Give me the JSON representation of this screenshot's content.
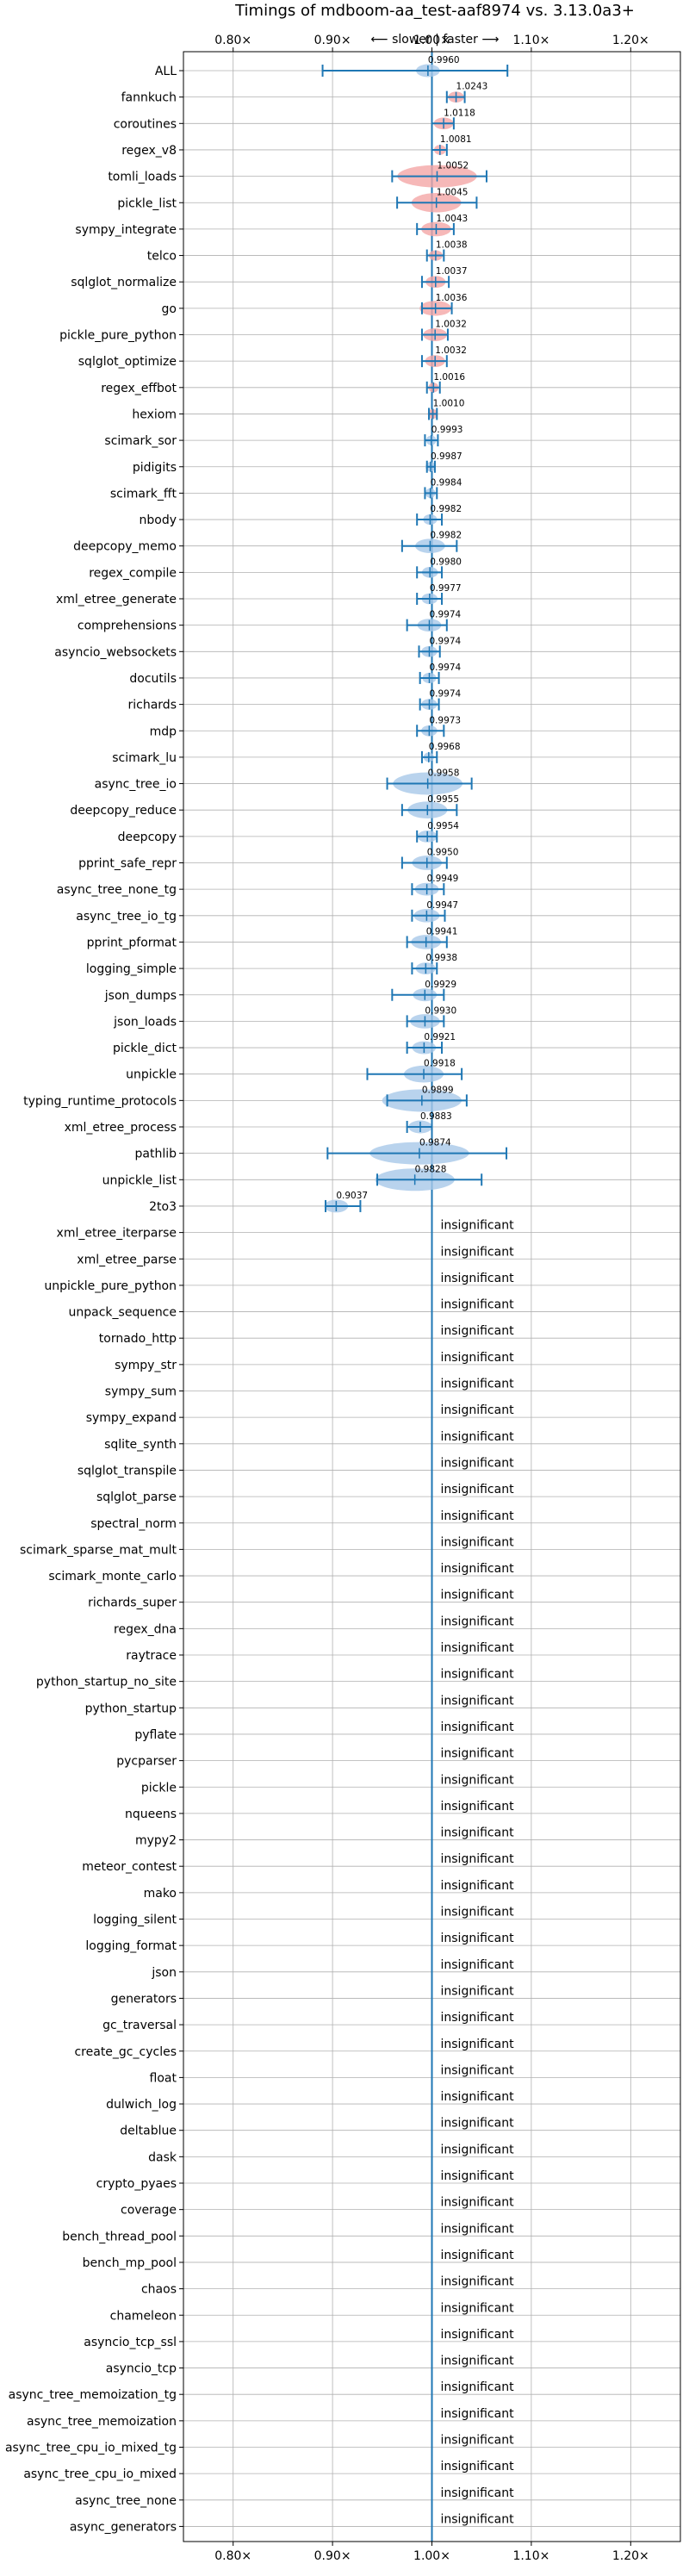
{
  "chart_data": {
    "type": "violin",
    "title": "Timings of mdboom-aa_test-aaf8974 vs. 3.13.0a3+",
    "subtitle": "⟵ slower | faster ⟶",
    "xlim": [
      0.75,
      1.25
    ],
    "x_ticks": [
      0.8,
      0.9,
      1.0,
      1.1,
      1.2
    ],
    "x_tick_labels": [
      "0.80×",
      "0.90×",
      "1.00×",
      "1.10×",
      "1.20×"
    ],
    "grid": true,
    "reference_line": 1.0,
    "insignificant_label": "insignificant",
    "colors": {
      "faster": "#f4a6a6",
      "slower": "#a8c8e8",
      "line": "#1f77b4",
      "grid": "#b0b0b0"
    },
    "benchmarks": [
      {
        "name": "ALL",
        "value": 0.996,
        "label": "0.9960",
        "lo": 0.89,
        "hi": 1.076,
        "spread": 0.012,
        "significant": true
      },
      {
        "name": "fannkuch",
        "value": 1.0243,
        "label": "1.0243",
        "lo": 1.015,
        "hi": 1.033,
        "spread": 0.008,
        "significant": true
      },
      {
        "name": "coroutines",
        "value": 1.0118,
        "label": "1.0118",
        "lo": 1.0,
        "hi": 1.022,
        "spread": 0.01,
        "significant": true
      },
      {
        "name": "regex_v8",
        "value": 1.0081,
        "label": "1.0081",
        "lo": 1.0,
        "hi": 1.015,
        "spread": 0.006,
        "significant": true
      },
      {
        "name": "tomli_loads",
        "value": 1.0052,
        "label": "1.0052",
        "lo": 0.96,
        "hi": 1.055,
        "spread": 0.04,
        "significant": true
      },
      {
        "name": "pickle_list",
        "value": 1.0045,
        "label": "1.0045",
        "lo": 0.965,
        "hi": 1.045,
        "spread": 0.025,
        "significant": true
      },
      {
        "name": "sympy_integrate",
        "value": 1.0043,
        "label": "1.0043",
        "lo": 0.985,
        "hi": 1.022,
        "spread": 0.015,
        "significant": true
      },
      {
        "name": "telco",
        "value": 1.0038,
        "label": "1.0038",
        "lo": 0.995,
        "hi": 1.012,
        "spread": 0.007,
        "significant": true
      },
      {
        "name": "sqlglot_normalize",
        "value": 1.0037,
        "label": "1.0037",
        "lo": 0.99,
        "hi": 1.017,
        "spread": 0.01,
        "significant": true
      },
      {
        "name": "go",
        "value": 1.0036,
        "label": "1.0036",
        "lo": 0.99,
        "hi": 1.02,
        "spread": 0.016,
        "significant": true
      },
      {
        "name": "pickle_pure_python",
        "value": 1.0032,
        "label": "1.0032",
        "lo": 0.99,
        "hi": 1.016,
        "spread": 0.012,
        "significant": true
      },
      {
        "name": "sqlglot_optimize",
        "value": 1.0032,
        "label": "1.0032",
        "lo": 0.99,
        "hi": 1.015,
        "spread": 0.01,
        "significant": true
      },
      {
        "name": "regex_effbot",
        "value": 1.0016,
        "label": "1.0016",
        "lo": 0.995,
        "hi": 1.008,
        "spread": 0.005,
        "significant": true
      },
      {
        "name": "hexiom",
        "value": 1.001,
        "label": "1.0010",
        "lo": 0.997,
        "hi": 1.005,
        "spread": 0.005,
        "significant": true
      },
      {
        "name": "scimark_sor",
        "value": 0.9993,
        "label": "0.9993",
        "lo": 0.993,
        "hi": 1.006,
        "spread": 0.005,
        "significant": true
      },
      {
        "name": "pidigits",
        "value": 0.9987,
        "label": "0.9987",
        "lo": 0.995,
        "hi": 1.003,
        "spread": 0.004,
        "significant": true
      },
      {
        "name": "scimark_fft",
        "value": 0.9984,
        "label": "0.9984",
        "lo": 0.993,
        "hi": 1.005,
        "spread": 0.005,
        "significant": true
      },
      {
        "name": "nbody",
        "value": 0.9982,
        "label": "0.9982",
        "lo": 0.985,
        "hi": 1.01,
        "spread": 0.007,
        "significant": true
      },
      {
        "name": "deepcopy_memo",
        "value": 0.9982,
        "label": "0.9982",
        "lo": 0.97,
        "hi": 1.025,
        "spread": 0.015,
        "significant": true
      },
      {
        "name": "regex_compile",
        "value": 0.998,
        "label": "0.9980",
        "lo": 0.985,
        "hi": 1.01,
        "spread": 0.008,
        "significant": true
      },
      {
        "name": "xml_etree_generate",
        "value": 0.9977,
        "label": "0.9977",
        "lo": 0.985,
        "hi": 1.01,
        "spread": 0.008,
        "significant": true
      },
      {
        "name": "comprehensions",
        "value": 0.9974,
        "label": "0.9974",
        "lo": 0.975,
        "hi": 1.015,
        "spread": 0.012,
        "significant": true
      },
      {
        "name": "asyncio_websockets",
        "value": 0.9974,
        "label": "0.9974",
        "lo": 0.987,
        "hi": 1.008,
        "spread": 0.008,
        "significant": true
      },
      {
        "name": "docutils",
        "value": 0.9974,
        "label": "0.9974",
        "lo": 0.988,
        "hi": 1.007,
        "spread": 0.007,
        "significant": true
      },
      {
        "name": "richards",
        "value": 0.9974,
        "label": "0.9974",
        "lo": 0.988,
        "hi": 1.007,
        "spread": 0.008,
        "significant": true
      },
      {
        "name": "mdp",
        "value": 0.9973,
        "label": "0.9973",
        "lo": 0.985,
        "hi": 1.012,
        "spread": 0.008,
        "significant": true
      },
      {
        "name": "scimark_lu",
        "value": 0.9968,
        "label": "0.9968",
        "lo": 0.99,
        "hi": 1.005,
        "spread": 0.005,
        "significant": true
      },
      {
        "name": "async_tree_io",
        "value": 0.9958,
        "label": "0.9958",
        "lo": 0.955,
        "hi": 1.04,
        "spread": 0.035,
        "significant": true
      },
      {
        "name": "deepcopy_reduce",
        "value": 0.9955,
        "label": "0.9955",
        "lo": 0.97,
        "hi": 1.025,
        "spread": 0.02,
        "significant": true
      },
      {
        "name": "deepcopy",
        "value": 0.9954,
        "label": "0.9954",
        "lo": 0.985,
        "hi": 1.005,
        "spread": 0.01,
        "significant": true
      },
      {
        "name": "pprint_safe_repr",
        "value": 0.995,
        "label": "0.9950",
        "lo": 0.97,
        "hi": 1.015,
        "spread": 0.015,
        "significant": true
      },
      {
        "name": "async_tree_none_tg",
        "value": 0.9949,
        "label": "0.9949",
        "lo": 0.98,
        "hi": 1.012,
        "spread": 0.012,
        "significant": true
      },
      {
        "name": "async_tree_io_tg",
        "value": 0.9947,
        "label": "0.9947",
        "lo": 0.98,
        "hi": 1.013,
        "spread": 0.013,
        "significant": true
      },
      {
        "name": "pprint_pformat",
        "value": 0.9941,
        "label": "0.9941",
        "lo": 0.975,
        "hi": 1.015,
        "spread": 0.015,
        "significant": true
      },
      {
        "name": "logging_simple",
        "value": 0.9938,
        "label": "0.9938",
        "lo": 0.98,
        "hi": 1.005,
        "spread": 0.01,
        "significant": true
      },
      {
        "name": "json_dumps",
        "value": 0.9929,
        "label": "0.9929",
        "lo": 0.96,
        "hi": 1.012,
        "spread": 0.012,
        "significant": true
      },
      {
        "name": "json_loads",
        "value": 0.993,
        "label": "0.9930",
        "lo": 0.975,
        "hi": 1.012,
        "spread": 0.015,
        "significant": true
      },
      {
        "name": "pickle_dict",
        "value": 0.9921,
        "label": "0.9921",
        "lo": 0.975,
        "hi": 1.01,
        "spread": 0.012,
        "significant": true
      },
      {
        "name": "unpickle",
        "value": 0.9918,
        "label": "0.9918",
        "lo": 0.935,
        "hi": 1.03,
        "spread": 0.02,
        "significant": true
      },
      {
        "name": "typing_runtime_protocols",
        "value": 0.9899,
        "label": "0.9899",
        "lo": 0.955,
        "hi": 1.035,
        "spread": 0.04,
        "significant": true
      },
      {
        "name": "xml_etree_process",
        "value": 0.9883,
        "label": "0.9883",
        "lo": 0.975,
        "hi": 1.0,
        "spread": 0.012,
        "significant": true
      },
      {
        "name": "pathlib",
        "value": 0.9874,
        "label": "0.9874",
        "lo": 0.895,
        "hi": 1.075,
        "spread": 0.05,
        "significant": true
      },
      {
        "name": "unpickle_list",
        "value": 0.9828,
        "label": "0.9828",
        "lo": 0.945,
        "hi": 1.05,
        "spread": 0.04,
        "significant": true
      },
      {
        "name": "2to3",
        "value": 0.9037,
        "label": "0.9037",
        "lo": 0.893,
        "hi": 0.928,
        "spread": 0.012,
        "significant": true
      },
      {
        "name": "xml_etree_iterparse",
        "significant": false
      },
      {
        "name": "xml_etree_parse",
        "significant": false
      },
      {
        "name": "unpickle_pure_python",
        "significant": false
      },
      {
        "name": "unpack_sequence",
        "significant": false
      },
      {
        "name": "tornado_http",
        "significant": false
      },
      {
        "name": "sympy_str",
        "significant": false
      },
      {
        "name": "sympy_sum",
        "significant": false
      },
      {
        "name": "sympy_expand",
        "significant": false
      },
      {
        "name": "sqlite_synth",
        "significant": false
      },
      {
        "name": "sqlglot_transpile",
        "significant": false
      },
      {
        "name": "sqlglot_parse",
        "significant": false
      },
      {
        "name": "spectral_norm",
        "significant": false
      },
      {
        "name": "scimark_sparse_mat_mult",
        "significant": false
      },
      {
        "name": "scimark_monte_carlo",
        "significant": false
      },
      {
        "name": "richards_super",
        "significant": false
      },
      {
        "name": "regex_dna",
        "significant": false
      },
      {
        "name": "raytrace",
        "significant": false
      },
      {
        "name": "python_startup_no_site",
        "significant": false
      },
      {
        "name": "python_startup",
        "significant": false
      },
      {
        "name": "pyflate",
        "significant": false
      },
      {
        "name": "pycparser",
        "significant": false
      },
      {
        "name": "pickle",
        "significant": false
      },
      {
        "name": "nqueens",
        "significant": false
      },
      {
        "name": "mypy2",
        "significant": false
      },
      {
        "name": "meteor_contest",
        "significant": false
      },
      {
        "name": "mako",
        "significant": false
      },
      {
        "name": "logging_silent",
        "significant": false
      },
      {
        "name": "logging_format",
        "significant": false
      },
      {
        "name": "json",
        "significant": false
      },
      {
        "name": "generators",
        "significant": false
      },
      {
        "name": "gc_traversal",
        "significant": false
      },
      {
        "name": "create_gc_cycles",
        "significant": false
      },
      {
        "name": "float",
        "significant": false
      },
      {
        "name": "dulwich_log",
        "significant": false
      },
      {
        "name": "deltablue",
        "significant": false
      },
      {
        "name": "dask",
        "significant": false
      },
      {
        "name": "crypto_pyaes",
        "significant": false
      },
      {
        "name": "coverage",
        "significant": false
      },
      {
        "name": "bench_thread_pool",
        "significant": false
      },
      {
        "name": "bench_mp_pool",
        "significant": false
      },
      {
        "name": "chaos",
        "significant": false
      },
      {
        "name": "chameleon",
        "significant": false
      },
      {
        "name": "asyncio_tcp_ssl",
        "significant": false
      },
      {
        "name": "asyncio_tcp",
        "significant": false
      },
      {
        "name": "async_tree_memoization_tg",
        "significant": false
      },
      {
        "name": "async_tree_memoization",
        "significant": false
      },
      {
        "name": "async_tree_cpu_io_mixed_tg",
        "significant": false
      },
      {
        "name": "async_tree_cpu_io_mixed",
        "significant": false
      },
      {
        "name": "async_tree_none",
        "significant": false
      },
      {
        "name": "async_generators",
        "significant": false
      }
    ]
  }
}
